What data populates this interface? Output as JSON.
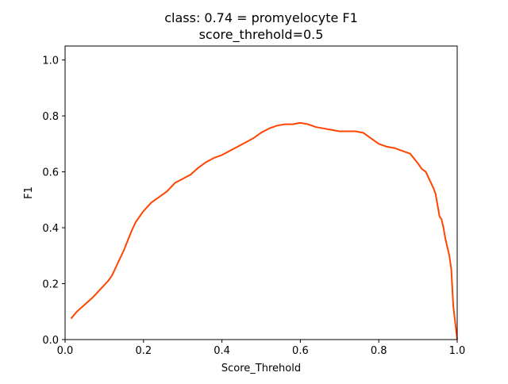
{
  "chart_data": {
    "type": "line",
    "title": "class: 0.74 = promyelocyte F1",
    "subtitle": "score_threhold=0.5",
    "xlabel": "Score_Threhold",
    "ylabel": "F1",
    "xlim": [
      0.0,
      1.0
    ],
    "ylim": [
      0.0,
      1.05
    ],
    "xticks": [
      0.0,
      0.2,
      0.4,
      0.6,
      0.8,
      1.0
    ],
    "xtick_labels": [
      "0.0",
      "0.2",
      "0.4",
      "0.6",
      "0.8",
      "1.0"
    ],
    "yticks": [
      0.0,
      0.2,
      0.4,
      0.6,
      0.8,
      1.0
    ],
    "ytick_labels": [
      "0.0",
      "0.2",
      "0.4",
      "0.6",
      "0.8",
      "1.0"
    ],
    "grid": false,
    "legend": "none",
    "series": [
      {
        "color": "#ff4500",
        "x": [
          0.015,
          0.03,
          0.05,
          0.07,
          0.09,
          0.11,
          0.12,
          0.13,
          0.15,
          0.17,
          0.18,
          0.2,
          0.22,
          0.24,
          0.26,
          0.28,
          0.3,
          0.32,
          0.34,
          0.36,
          0.38,
          0.4,
          0.42,
          0.44,
          0.46,
          0.48,
          0.5,
          0.52,
          0.54,
          0.56,
          0.58,
          0.6,
          0.62,
          0.64,
          0.66,
          0.68,
          0.7,
          0.72,
          0.74,
          0.76,
          0.78,
          0.8,
          0.82,
          0.84,
          0.86,
          0.88,
          0.9,
          0.91,
          0.92,
          0.93,
          0.94,
          0.945,
          0.95,
          0.955,
          0.96,
          0.965,
          0.97,
          0.975,
          0.98,
          0.985,
          0.99,
          0.995,
          1.0
        ],
        "y": [
          0.075,
          0.1,
          0.125,
          0.15,
          0.18,
          0.21,
          0.23,
          0.26,
          0.32,
          0.39,
          0.42,
          0.46,
          0.49,
          0.51,
          0.53,
          0.56,
          0.575,
          0.59,
          0.615,
          0.635,
          0.65,
          0.66,
          0.675,
          0.69,
          0.705,
          0.72,
          0.74,
          0.755,
          0.765,
          0.77,
          0.77,
          0.775,
          0.77,
          0.76,
          0.755,
          0.75,
          0.745,
          0.745,
          0.745,
          0.74,
          0.72,
          0.7,
          0.69,
          0.685,
          0.675,
          0.665,
          0.63,
          0.61,
          0.6,
          0.57,
          0.54,
          0.52,
          0.48,
          0.44,
          0.43,
          0.4,
          0.36,
          0.33,
          0.3,
          0.25,
          0.12,
          0.06,
          0.0
        ]
      }
    ]
  }
}
